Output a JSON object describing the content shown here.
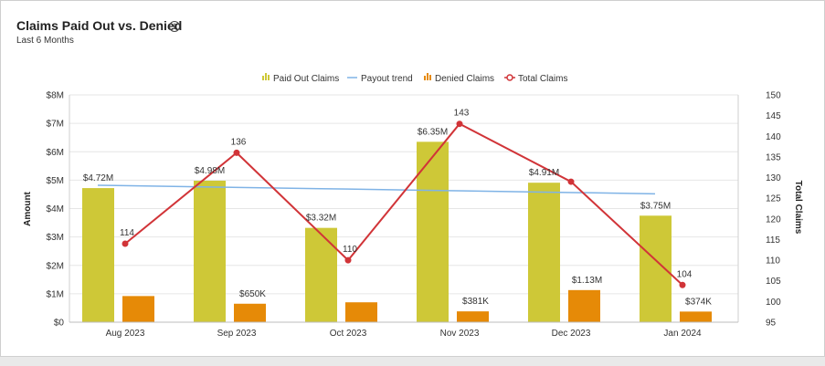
{
  "header": {
    "title": "Claims Paid Out vs. Denied",
    "subtitle": "Last 6 Months",
    "info_icon": "info-icon"
  },
  "colors": {
    "paid": "#cec837",
    "denied": "#e68a07",
    "trend": "#7fb3e6",
    "total": "#d13438"
  },
  "chart_data": {
    "type": "bar",
    "title": "Claims Paid Out vs. Denied",
    "subtitle": "Last 6 Months",
    "categories": [
      "Aug 2023",
      "Sep 2023",
      "Oct 2023",
      "Nov 2023",
      "Dec 2023",
      "Jan 2024"
    ],
    "series": [
      {
        "name": "Paid Out Claims",
        "type": "bar",
        "axis": "left",
        "values": [
          4.72,
          4.98,
          3.32,
          6.35,
          4.91,
          3.75
        ],
        "labels": [
          "$4.72M",
          "$4.98M",
          "$3.32M",
          "$6.35M",
          "$4.91M",
          "$3.75M"
        ]
      },
      {
        "name": "Payout trend",
        "type": "line",
        "axis": "left",
        "values": [
          4.82,
          4.76,
          4.7,
          4.64,
          4.58,
          4.52
        ]
      },
      {
        "name": "Denied Claims",
        "type": "bar",
        "axis": "left",
        "values": [
          0.92,
          0.65,
          0.7,
          0.381,
          1.13,
          0.374
        ],
        "labels": [
          "",
          "$650K",
          "",
          "$381K",
          "$1.13M",
          "$374K"
        ]
      },
      {
        "name": "Total Claims",
        "type": "line",
        "axis": "right",
        "values": [
          114,
          136,
          110,
          143,
          129,
          104
        ],
        "labels": [
          "114",
          "136",
          "110",
          "143",
          "",
          "104"
        ]
      }
    ],
    "ylabel": "Amount",
    "y2label": "Total Claims",
    "ylim": [
      0,
      8
    ],
    "y2lim": [
      95,
      150
    ],
    "yticks": [
      "$0",
      "$1M",
      "$2M",
      "$3M",
      "$4M",
      "$5M",
      "$6M",
      "$7M",
      "$8M"
    ],
    "y2ticks": [
      "95",
      "100",
      "105",
      "110",
      "115",
      "120",
      "125",
      "130",
      "135",
      "140",
      "145",
      "150"
    ],
    "legend": "top-center",
    "grid": true
  }
}
